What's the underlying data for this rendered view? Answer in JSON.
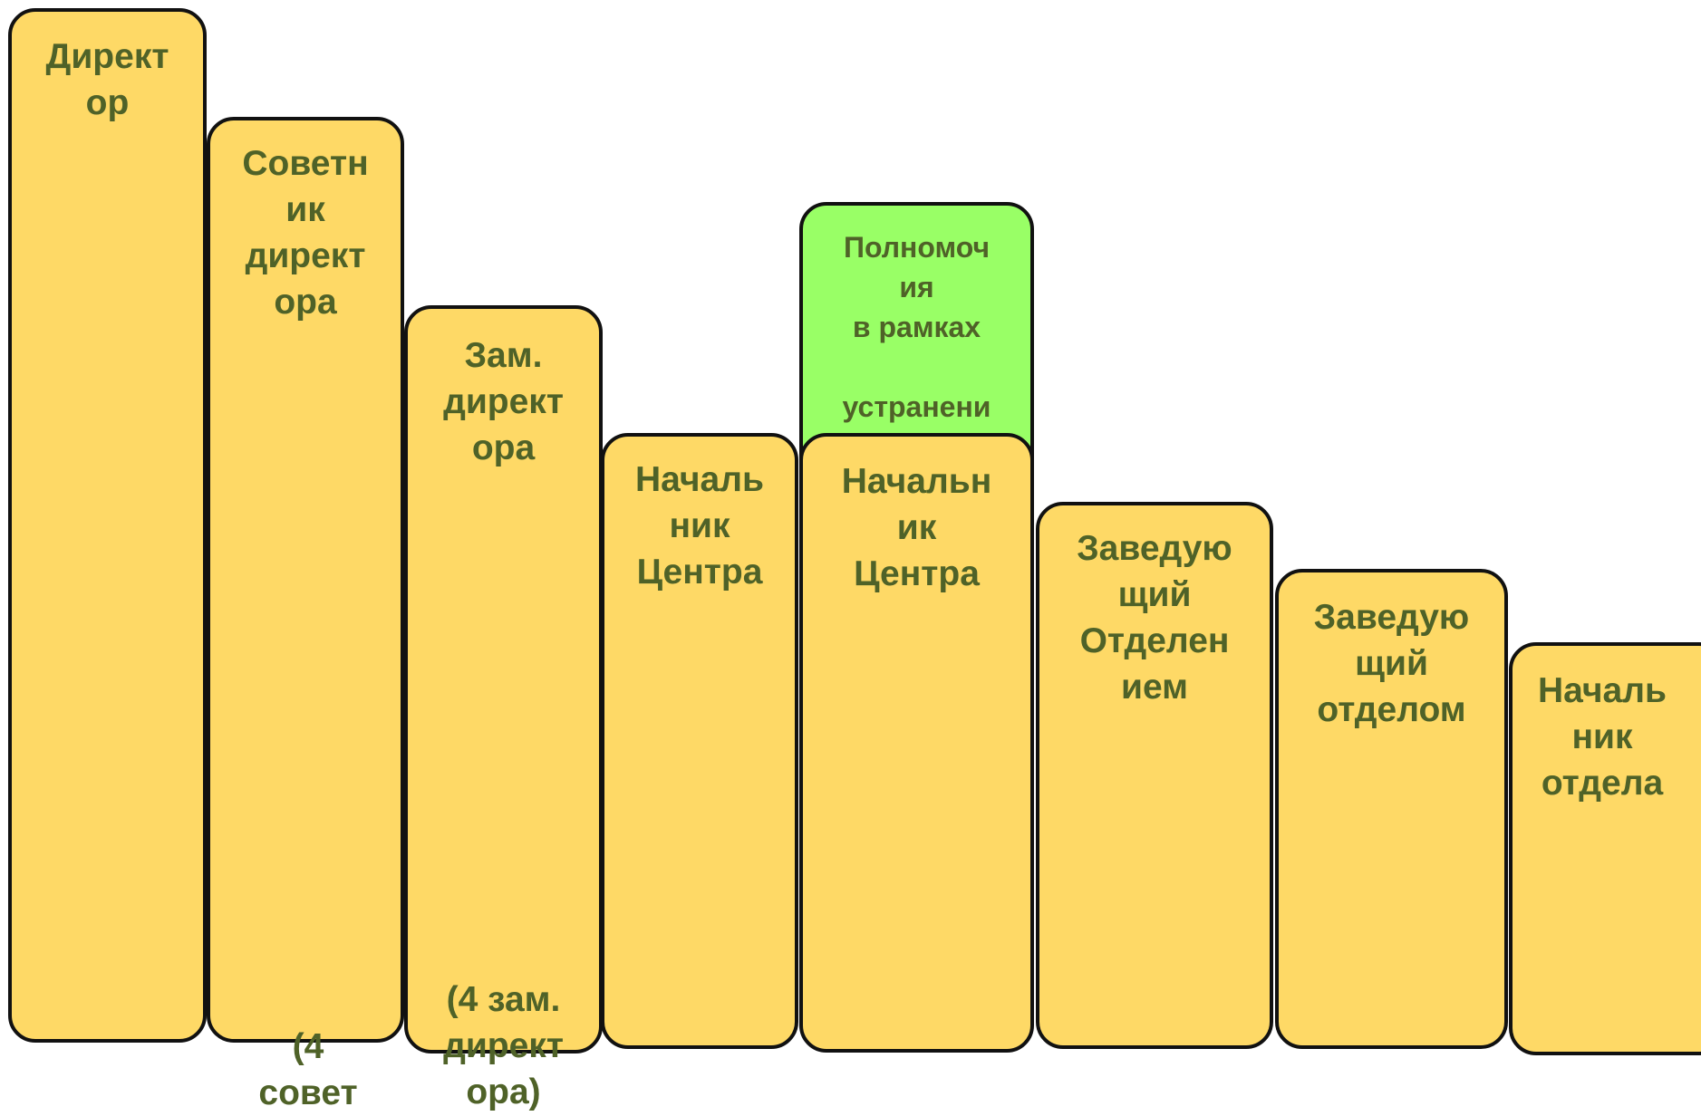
{
  "boxes": [
    {
      "id": "director",
      "label": "Директ\nор"
    },
    {
      "id": "advisor",
      "label": "Советн\nик\nдирект\nора",
      "note": "(4\nсовет"
    },
    {
      "id": "deputy",
      "label": "Зам.\nдирект\nора",
      "note": "(4 зам.\nдирект\nора)"
    },
    {
      "id": "center-head-1",
      "label": "Началь\nник\nЦентра"
    },
    {
      "id": "authority",
      "label": "Полномоч\nия\nв рамках\n\nустранени"
    },
    {
      "id": "center-head-2",
      "label": "Начальн\nик\nЦентра"
    },
    {
      "id": "branch-head",
      "label": "Заведую\nщий\nОтделен\nием"
    },
    {
      "id": "dept-head",
      "label": "Заведую\nщий\nотделом"
    },
    {
      "id": "section-chief",
      "label": "Началь\nник\nотдела"
    }
  ],
  "colors": {
    "box_fill": "#fed966",
    "highlight_fill": "#99ff66",
    "text": "#4f6228",
    "border": "#111111"
  }
}
